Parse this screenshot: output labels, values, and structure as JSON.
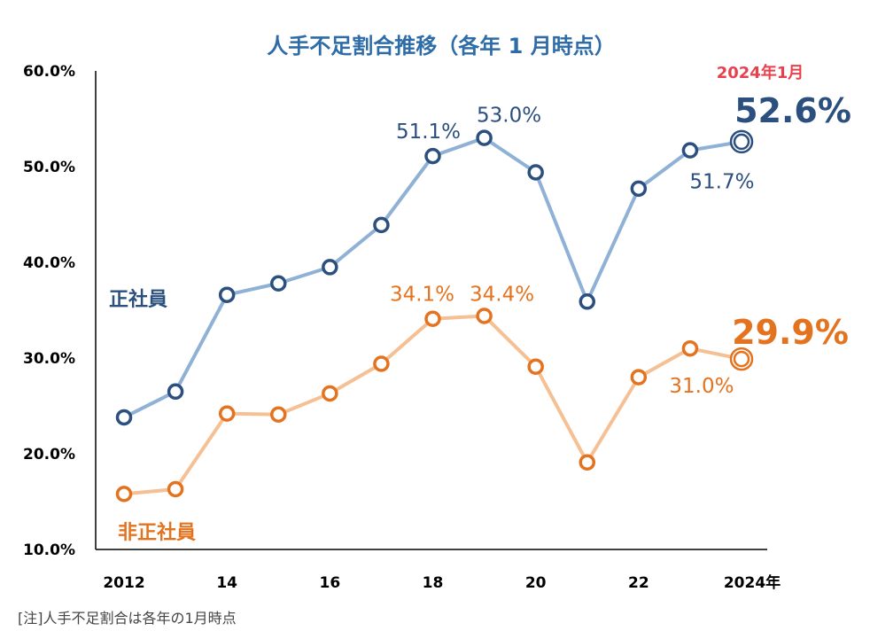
{
  "colors": {
    "title": "#2e6ca8",
    "regular_line": "#8fb1d6",
    "regular_marker": "#2b4f7e",
    "nonregular_line": "#f5c093",
    "nonregular_marker": "#e47320",
    "period": "#e8414e"
  },
  "note": "[注]人手不足割合は各年の1月時点",
  "chart_data": {
    "type": "line",
    "title": "人手不足割合推移（各年 1 月時点）",
    "x": [
      2012,
      2013,
      2014,
      2015,
      2016,
      2017,
      2018,
      2019,
      2020,
      2021,
      2022,
      2023,
      2024
    ],
    "x_tick_labels": [
      "2012",
      "14",
      "16",
      "18",
      "20",
      "22",
      "2024年"
    ],
    "x_tick_positions": [
      2012,
      2014,
      2016,
      2018,
      2020,
      2022,
      2024
    ],
    "y_tick_labels": [
      "60.0%",
      "50.0%",
      "40.0%",
      "30.0%",
      "20.0%",
      "10.0%"
    ],
    "y_tick_values": [
      60,
      50,
      40,
      30,
      20,
      10
    ],
    "ylim": [
      10,
      60
    ],
    "xlabel": "",
    "ylabel": "",
    "grid": false,
    "series": [
      {
        "name": "正社員",
        "values": [
          23.8,
          26.5,
          36.6,
          37.8,
          39.5,
          43.9,
          51.1,
          53.0,
          49.4,
          35.9,
          47.7,
          51.7,
          52.6
        ]
      },
      {
        "name": "非正社員",
        "values": [
          15.8,
          16.3,
          24.2,
          24.1,
          26.3,
          29.4,
          34.1,
          34.4,
          29.1,
          19.1,
          28.0,
          31.0,
          29.9
        ]
      }
    ],
    "annotations": {
      "regular": [
        {
          "x": 2018,
          "text": "51.1%"
        },
        {
          "x": 2019,
          "text": "53.0%"
        },
        {
          "x": 2023,
          "text": "51.7%"
        },
        {
          "x": 2024,
          "text": "52.6%"
        }
      ],
      "nonregular": [
        {
          "x": 2018,
          "text": "34.1%"
        },
        {
          "x": 2019,
          "text": "34.4%"
        },
        {
          "x": 2023,
          "text": "31.0%"
        },
        {
          "x": 2024,
          "text": "29.9%"
        }
      ],
      "period_label": "2024年1月"
    }
  }
}
